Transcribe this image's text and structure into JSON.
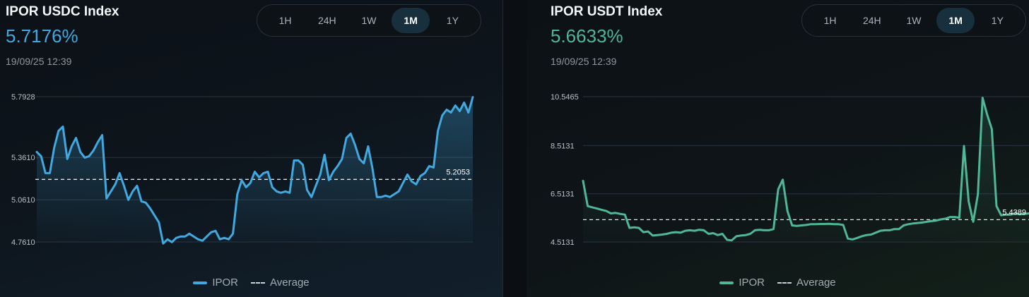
{
  "range_options": [
    "1H",
    "24H",
    "1W",
    "1M",
    "1Y"
  ],
  "active_range": "1M",
  "timestamp": "19/09/25 12:39",
  "legend": {
    "series_label": "IPOR",
    "average_label": "Average"
  },
  "chart_data": [
    {
      "type": "line",
      "title": "IPOR USDC Index",
      "current_value": "5.7176%",
      "color": "#41a9e0",
      "yticks": [
        "5.7928",
        "5.3610",
        "5.0610",
        "4.7610"
      ],
      "ylim": [
        4.761,
        5.7928
      ],
      "average": 5.2053,
      "average_label": "5.2053",
      "series": [
        {
          "name": "IPOR",
          "values": [
            5.4,
            5.37,
            5.25,
            5.25,
            5.43,
            5.55,
            5.58,
            5.35,
            5.44,
            5.5,
            5.4,
            5.36,
            5.37,
            5.41,
            5.47,
            5.52,
            5.07,
            5.12,
            5.17,
            5.25,
            5.16,
            5.06,
            5.12,
            5.16,
            5.05,
            5.04,
            5.0,
            4.95,
            4.9,
            4.75,
            4.78,
            4.76,
            4.79,
            4.8,
            4.8,
            4.82,
            4.8,
            4.78,
            4.77,
            4.8,
            4.83,
            4.84,
            4.78,
            4.79,
            4.78,
            4.82,
            5.1,
            5.2,
            5.15,
            5.18,
            5.26,
            5.22,
            5.25,
            5.26,
            5.15,
            5.12,
            5.11,
            5.12,
            5.11,
            5.34,
            5.34,
            5.31,
            5.13,
            5.08,
            5.16,
            5.24,
            5.38,
            5.2,
            5.26,
            5.3,
            5.35,
            5.5,
            5.53,
            5.45,
            5.35,
            5.32,
            5.44,
            5.28,
            5.08,
            5.08,
            5.09,
            5.08,
            5.1,
            5.12,
            5.18,
            5.24,
            5.19,
            5.17,
            5.23,
            5.25,
            5.3,
            5.29,
            5.55,
            5.66,
            5.7,
            5.68,
            5.73,
            5.69,
            5.75,
            5.68,
            5.79
          ]
        }
      ]
    },
    {
      "type": "line",
      "title": "IPOR USDT Index",
      "current_value": "5.6633%",
      "color": "#4fb795",
      "yticks": [
        "10.5465",
        "8.5131",
        "6.5131",
        "4.5131"
      ],
      "ylim": [
        4.5131,
        10.5465
      ],
      "average": 5.4389,
      "average_label": "5.4389",
      "series": [
        {
          "name": "IPOR",
          "values": [
            7.05,
            6.0,
            5.95,
            5.9,
            5.85,
            5.8,
            5.7,
            5.72,
            5.68,
            5.65,
            5.1,
            5.12,
            5.1,
            4.92,
            4.95,
            4.78,
            4.8,
            4.82,
            4.85,
            4.9,
            4.92,
            4.9,
            4.98,
            5.0,
            4.98,
            5.02,
            5.0,
            4.85,
            4.88,
            4.8,
            4.85,
            4.6,
            4.58,
            4.75,
            4.78,
            4.8,
            4.85,
            5.0,
            5.02,
            5.0,
            5.0,
            5.05,
            6.7,
            7.1,
            5.8,
            5.2,
            5.18,
            5.2,
            5.22,
            5.25,
            5.25,
            5.26,
            5.26,
            5.27,
            5.25,
            5.25,
            5.22,
            4.65,
            4.62,
            4.68,
            4.75,
            4.8,
            4.82,
            4.9,
            4.98,
            5.0,
            5.0,
            5.05,
            5.05,
            5.2,
            5.25,
            5.28,
            5.3,
            5.32,
            5.35,
            5.38,
            5.4,
            5.45,
            5.48,
            5.55,
            5.55,
            5.52,
            8.5,
            6.2,
            5.35,
            6.5,
            10.5,
            9.8,
            9.2,
            6.0,
            5.62,
            5.65,
            5.65,
            5.7,
            5.66,
            5.68,
            5.7
          ]
        }
      ]
    }
  ]
}
